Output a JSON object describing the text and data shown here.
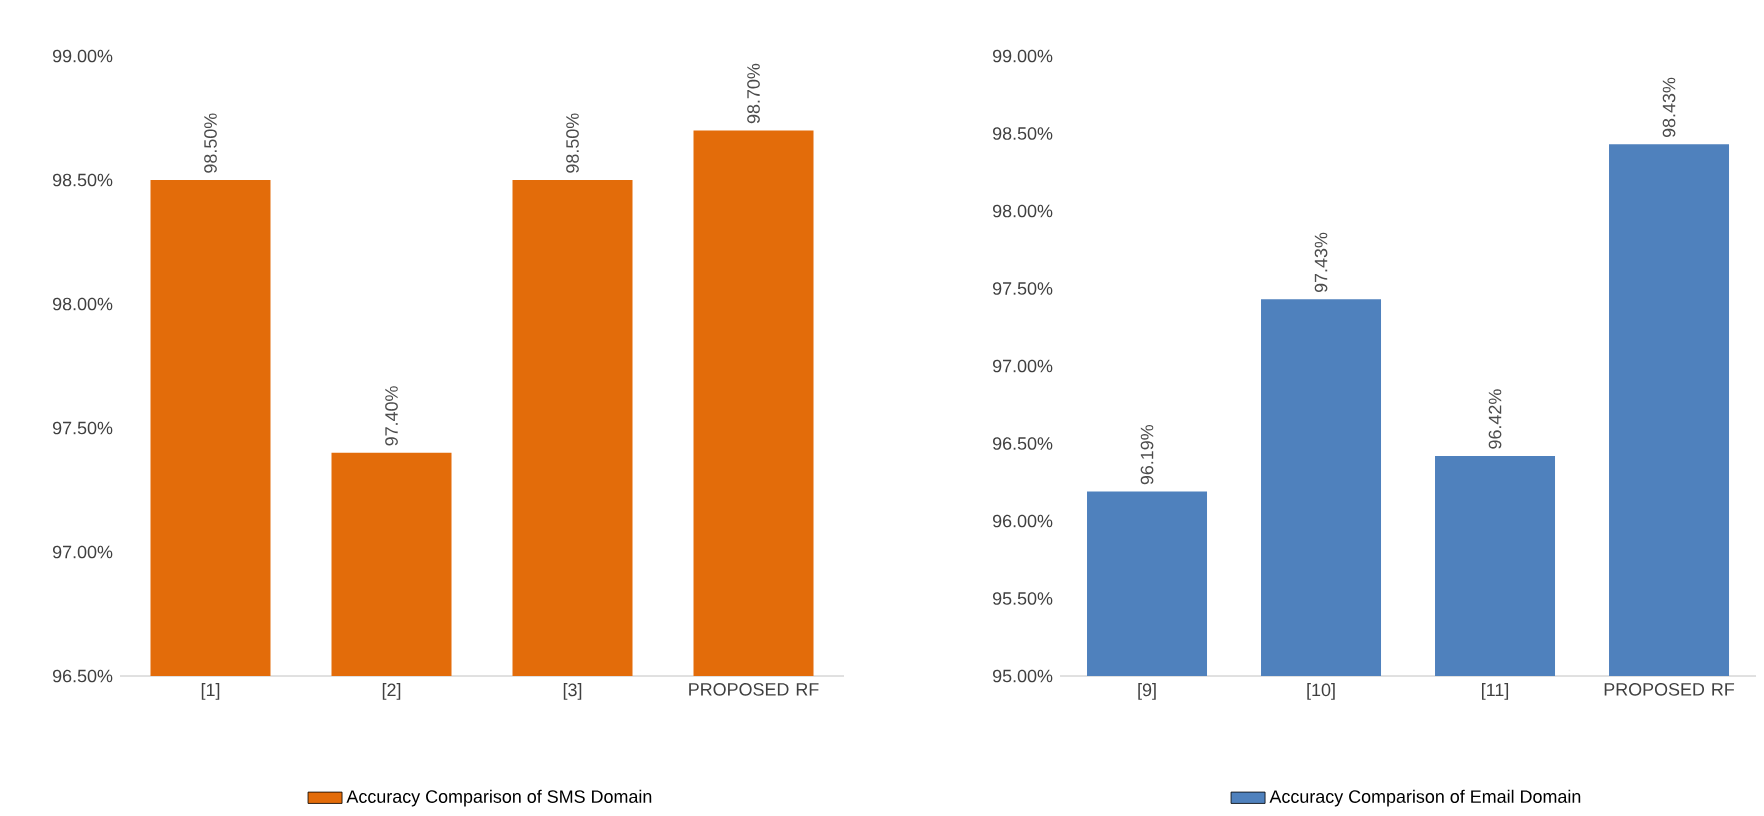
{
  "chart_data": [
    {
      "type": "bar",
      "categories": [
        "[1]",
        "[2]",
        "[3]",
        "PROPOSED RF"
      ],
      "series": [
        {
          "name": "Accuracy Comparison of SMS Domain",
          "color": "#e36c0a",
          "values": [
            98.5,
            97.4,
            98.5,
            98.7
          ],
          "value_labels": [
            "98.50%",
            "97.40%",
            "98.50%",
            "98.70%"
          ]
        }
      ],
      "ylim": [
        96.5,
        99
      ],
      "yticks": [
        {
          "value": 96.5,
          "label": "96.50%"
        },
        {
          "value": 97,
          "label": "97.00%"
        },
        {
          "value": 97.5,
          "label": "97.50%"
        },
        {
          "value": 98,
          "label": "98.00%"
        },
        {
          "value": 98.5,
          "label": "98.50%"
        },
        {
          "value": 99,
          "label": "99.00%"
        }
      ],
      "legend": "bottom"
    },
    {
      "type": "bar",
      "categories": [
        "[9]",
        "[10]",
        "[11]",
        "PROPOSED RF"
      ],
      "series": [
        {
          "name": "Accuracy Comparison of Email Domain",
          "color": "#4f81bd",
          "values": [
            96.19,
            97.43,
            96.42,
            98.43
          ],
          "value_labels": [
            "96.19%",
            "97.43%",
            "96.42%",
            "98.43%"
          ]
        }
      ],
      "ylim": [
        95,
        99
      ],
      "yticks": [
        {
          "value": 95,
          "label": "95.00%"
        },
        {
          "value": 95.5,
          "label": "95.50%"
        },
        {
          "value": 96,
          "label": "96.00%"
        },
        {
          "value": 96.5,
          "label": "96.50%"
        },
        {
          "value": 97,
          "label": "97.00%"
        },
        {
          "value": 97.5,
          "label": "97.50%"
        },
        {
          "value": 98,
          "label": "98.00%"
        },
        {
          "value": 98.5,
          "label": "98.50%"
        },
        {
          "value": 99,
          "label": "99.00%"
        }
      ],
      "legend": "bottom"
    }
  ]
}
